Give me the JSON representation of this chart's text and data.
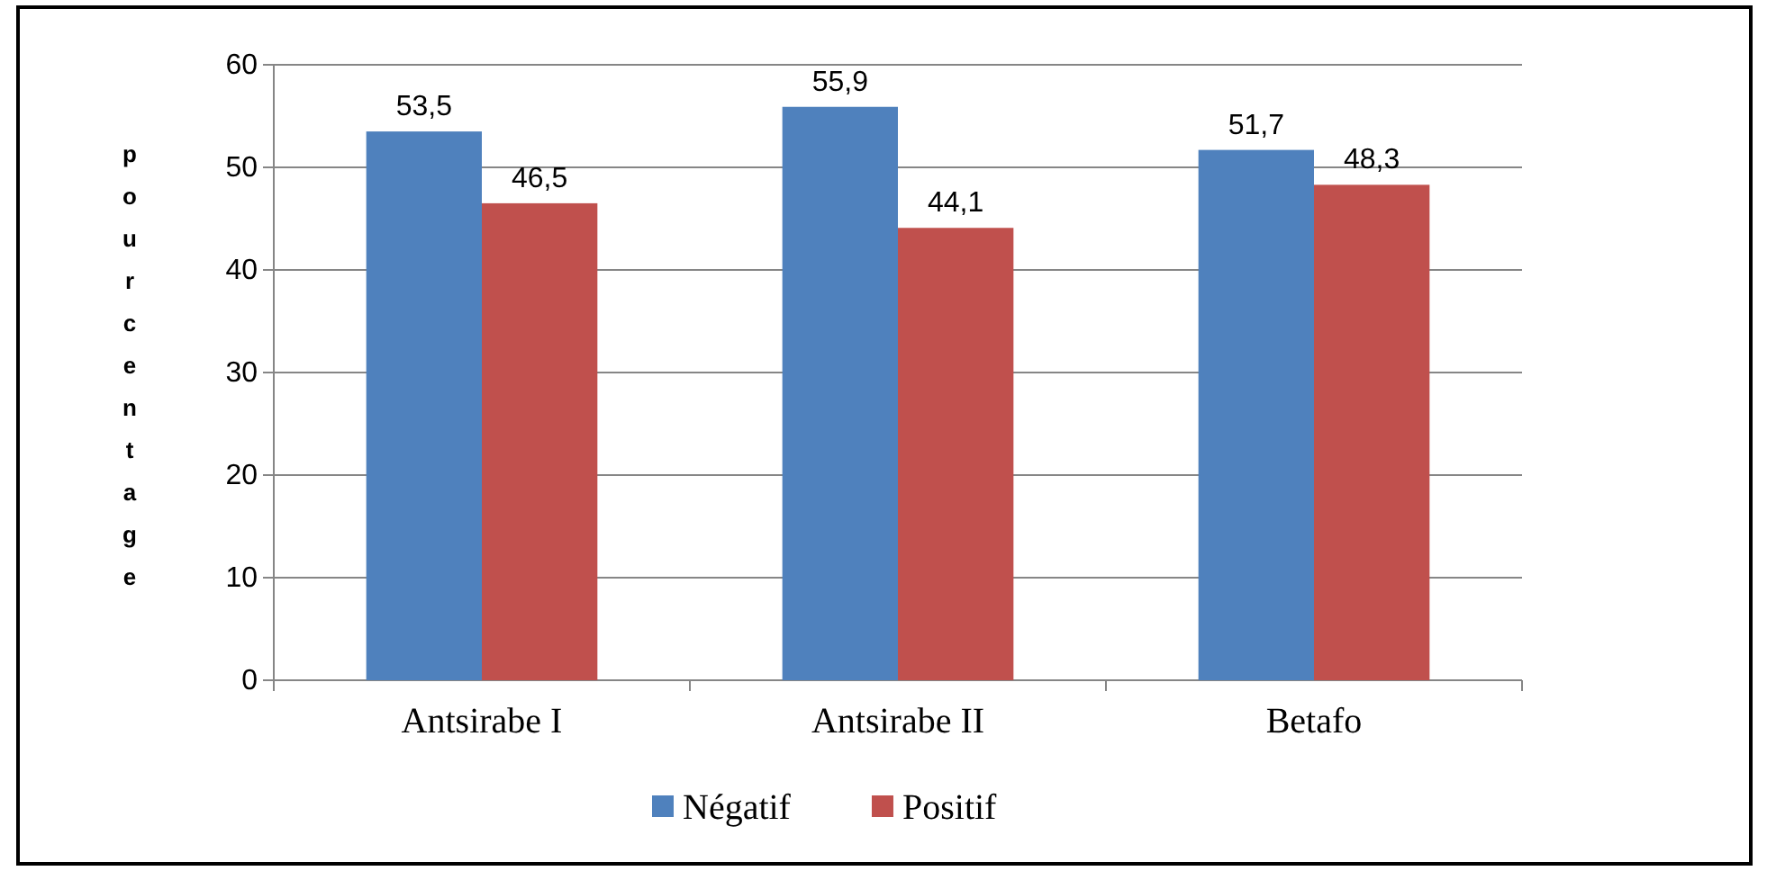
{
  "chart_data": {
    "type": "bar",
    "ylabel": "pourcentage",
    "categories": [
      "Antsirabe I",
      "Antsirabe II",
      "Betafo"
    ],
    "series": [
      {
        "name": "Négatif",
        "color": "#4f81bd",
        "values": [
          53.5,
          55.9,
          51.7
        ],
        "value_labels": [
          "53,5",
          "55,9",
          "51,7"
        ]
      },
      {
        "name": "Positif",
        "color": "#c0504d",
        "values": [
          46.5,
          44.1,
          48.3
        ],
        "value_labels": [
          "46,5",
          "44,1",
          "48,3"
        ]
      }
    ],
    "ylim": [
      0,
      60
    ],
    "yticks": [
      0,
      10,
      20,
      30,
      40,
      50,
      60
    ],
    "grid": "y",
    "legend": "bottom"
  }
}
